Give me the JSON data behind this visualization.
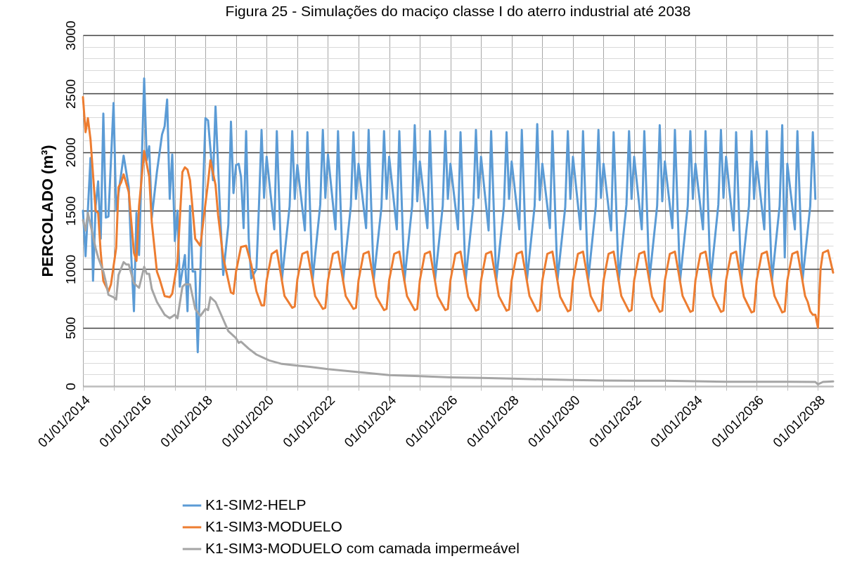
{
  "chart_data": {
    "type": "line",
    "title": "Figura 25 - Simulações do maciço classe I do aterro industrial até 2038",
    "ylabel": "PERCOLADO (m³)",
    "xlim": [
      "2014-01-01",
      "2038-07-01"
    ],
    "xticks": [
      {
        "value": "2014-01-01",
        "label": "01/01/2014"
      },
      {
        "value": "2015-01-01",
        "label": null
      },
      {
        "value": "2016-01-01",
        "label": "01/01/2016"
      },
      {
        "value": "2017-01-01",
        "label": null
      },
      {
        "value": "2018-01-01",
        "label": "01/01/2018"
      },
      {
        "value": "2019-01-01",
        "label": null
      },
      {
        "value": "2020-01-01",
        "label": "01/01/2020"
      },
      {
        "value": "2021-01-01",
        "label": null
      },
      {
        "value": "2022-01-01",
        "label": "01/01/2022"
      },
      {
        "value": "2023-01-01",
        "label": null
      },
      {
        "value": "2024-01-01",
        "label": "01/01/2024"
      },
      {
        "value": "2025-01-01",
        "label": null
      },
      {
        "value": "2026-01-01",
        "label": "01/01/2026"
      },
      {
        "value": "2027-01-01",
        "label": null
      },
      {
        "value": "2028-01-01",
        "label": "01/01/2028"
      },
      {
        "value": "2029-01-01",
        "label": null
      },
      {
        "value": "2030-01-01",
        "label": "01/01/2030"
      },
      {
        "value": "2031-01-01",
        "label": null
      },
      {
        "value": "2032-01-01",
        "label": "01/01/2032"
      },
      {
        "value": "2033-01-01",
        "label": null
      },
      {
        "value": "2034-01-01",
        "label": "01/01/2034"
      },
      {
        "value": "2035-01-01",
        "label": null
      },
      {
        "value": "2036-01-01",
        "label": "01/01/2036"
      },
      {
        "value": "2037-01-01",
        "label": null
      },
      {
        "value": "2038-01-01",
        "label": "01/01/2038"
      }
    ],
    "ylim": [
      0,
      3000
    ],
    "yticks": [
      0,
      {
        "value": 100,
        "label": null
      },
      {
        "value": 200,
        "label": null
      },
      {
        "value": 300,
        "label": null
      },
      {
        "value": 400,
        "label": null
      },
      500,
      {
        "value": 600,
        "label": null
      },
      {
        "value": 700,
        "label": null
      },
      {
        "value": 800,
        "label": null
      },
      {
        "value": 900,
        "label": null
      },
      1000,
      {
        "value": 1100,
        "label": null
      },
      {
        "value": 1200,
        "label": null
      },
      {
        "value": 1300,
        "label": null
      },
      {
        "value": 1400,
        "label": null
      },
      1500,
      {
        "value": 1600,
        "label": null
      },
      {
        "value": 1700,
        "label": null
      },
      {
        "value": 1800,
        "label": null
      },
      {
        "value": 1900,
        "label": null
      },
      2000,
      {
        "value": 2100,
        "label": null
      },
      {
        "value": 2200,
        "label": null
      },
      {
        "value": 2300,
        "label": null
      },
      {
        "value": 2400,
        "label": null
      },
      2500,
      {
        "value": 2600,
        "label": null
      },
      {
        "value": 2700,
        "label": null
      },
      {
        "value": 2800,
        "label": null
      },
      {
        "value": 2900,
        "label": null
      },
      3000
    ],
    "grid": true,
    "legend": "bottom",
    "marker": "none",
    "line_style": "solid",
    "series": [
      {
        "name": "K1-SIM2-HELP",
        "color": "#5b9bd5",
        "x": [
          "2014-01",
          "2014-02",
          "2014-04",
          "2014-05",
          "2014-06",
          "2014-07",
          "2014-08",
          "2014-09",
          "2014-10",
          "2014-11",
          "2015-01",
          "2015-02",
          "2015-05",
          "2015-07",
          "2015-08",
          "2015-09",
          "2015-10",
          "2015-11",
          "2016-01",
          "2016-02",
          "2016-03",
          "2016-04",
          "2016-06",
          "2016-08",
          "2016-09",
          "2016-10",
          "2016-11",
          "2016-12",
          "2017-01",
          "2017-02",
          "2017-03",
          "2017-05",
          "2017-06",
          "2017-07",
          "2017-08",
          "2017-09",
          "2017-10",
          "2017-12",
          "2018-01",
          "2018-02",
          "2018-04",
          "2018-05",
          "2018-07",
          "2018-08",
          "2018-10",
          "2018-11",
          "2018-12",
          "2019-01",
          "2019-02",
          "2019-03",
          "2019-04",
          "2019-05",
          "2019-06",
          "2019-07",
          "2019-09",
          "2019-10",
          "2019-11",
          "2019-12",
          "2020-01",
          "2020-04",
          "2020-05",
          "2020-07",
          "2020-10",
          "2020-11",
          "2020-12",
          "2021-01",
          "2021-04",
          "2021-05",
          "2021-07",
          "2021-10",
          "2021-11",
          "2021-12",
          "2022-01",
          "2022-04",
          "2022-05",
          "2022-07",
          "2022-10",
          "2022-11",
          "2022-12",
          "2023-01",
          "2023-04",
          "2023-05",
          "2023-07",
          "2023-10",
          "2023-11",
          "2023-12",
          "2024-01",
          "2024-04",
          "2024-05",
          "2024-07",
          "2024-10",
          "2024-11",
          "2024-12",
          "2025-01",
          "2025-04",
          "2025-05",
          "2025-07",
          "2025-10",
          "2025-11",
          "2025-12",
          "2026-01",
          "2026-04",
          "2026-05",
          "2026-07",
          "2026-10",
          "2026-11",
          "2026-12",
          "2027-01",
          "2027-04",
          "2027-05",
          "2027-07",
          "2027-10",
          "2027-11",
          "2027-12",
          "2028-01",
          "2028-04",
          "2028-05",
          "2028-07",
          "2028-10",
          "2028-11",
          "2028-12",
          "2029-01",
          "2029-04",
          "2029-05",
          "2029-07",
          "2029-10",
          "2029-11",
          "2029-12",
          "2030-01",
          "2030-04",
          "2030-05",
          "2030-07",
          "2030-10",
          "2030-11",
          "2030-12",
          "2031-01",
          "2031-04",
          "2031-05",
          "2031-07",
          "2031-10",
          "2031-11",
          "2031-12",
          "2032-01",
          "2032-04",
          "2032-05",
          "2032-07",
          "2032-10",
          "2032-11",
          "2032-12",
          "2033-01",
          "2033-04",
          "2033-05",
          "2033-07",
          "2033-10",
          "2033-11",
          "2033-12",
          "2034-01",
          "2034-04",
          "2034-05",
          "2034-07",
          "2034-10",
          "2034-11",
          "2034-12",
          "2035-01",
          "2035-04",
          "2035-05",
          "2035-07",
          "2035-10",
          "2035-11",
          "2035-12",
          "2036-01",
          "2036-04",
          "2036-05",
          "2036-07",
          "2036-10",
          "2036-11",
          "2036-12",
          "2037-01",
          "2037-04",
          "2037-05",
          "2037-07",
          "2037-10",
          "2037-11",
          "2037-12"
        ],
        "values": [
          1500,
          1110,
          1950,
          900,
          1540,
          1750,
          1260,
          2330,
          1440,
          1450,
          2420,
          1500,
          1970,
          1700,
          1100,
          640,
          1480,
          1120,
          2630,
          1930,
          2050,
          1440,
          1830,
          2150,
          2220,
          2450,
          1600,
          1980,
          1240,
          1500,
          850,
          1120,
          640,
          1540,
          980,
          980,
          290,
          1620,
          2290,
          2270,
          1760,
          2390,
          1380,
          950,
          1380,
          2260,
          1650,
          1890,
          1900,
          1790,
          1350,
          2180,
          1260,
          920,
          1000,
          1540,
          2190,
          1610,
          1960,
          1340,
          2180,
          910,
          1540,
          2180,
          1600,
          1890,
          1330,
          2170,
          900,
          1550,
          2190,
          1610,
          1980,
          1340,
          2180,
          905,
          1540,
          2170,
          1600,
          1900,
          1350,
          2190,
          910,
          1530,
          2180,
          1600,
          1960,
          1340,
          2180,
          900,
          1540,
          2230,
          1580,
          1920,
          1350,
          2180,
          905,
          1540,
          2180,
          1600,
          1900,
          1340,
          2170,
          910,
          1550,
          2190,
          1610,
          1960,
          1330,
          2180,
          900,
          1540,
          2170,
          1600,
          1920,
          1340,
          2190,
          905,
          1540,
          2240,
          1590,
          1900,
          1350,
          2180,
          910,
          1530,
          2180,
          1600,
          1960,
          1340,
          2180,
          900,
          1540,
          2190,
          1610,
          1900,
          1330,
          2170,
          905,
          1550,
          2180,
          1600,
          1960,
          1340,
          2180,
          910,
          1540,
          2230,
          1580,
          1920,
          1350,
          2190,
          900,
          1540,
          2180,
          1600,
          1900,
          1340,
          2180,
          905,
          1550,
          2190,
          1610,
          1960,
          1330,
          2170,
          910,
          1540,
          2180,
          1600,
          1920,
          1340,
          2180,
          900,
          1540,
          2230,
          1100,
          1900,
          1340,
          2180,
          905,
          1540,
          2170,
          1600
        ]
      },
      {
        "name": "K1-SIM3-MODUELO",
        "color": "#ed7d31",
        "x": [
          "2014-01",
          "2014-02",
          "2014-03",
          "2014-04",
          "2014-06",
          "2014-07",
          "2014-08",
          "2014-09",
          "2014-11",
          "2014-12",
          "2015-02",
          "2015-03",
          "2015-04",
          "2015-05",
          "2015-07",
          "2015-09",
          "2015-10",
          "2015-11",
          "2016-01",
          "2016-03",
          "2016-04",
          "2016-06",
          "2016-07",
          "2016-09",
          "2016-11",
          "2016-12",
          "2017-02",
          "2017-04",
          "2017-05",
          "2017-06",
          "2017-07",
          "2017-09",
          "2017-11",
          "2018-01",
          "2018-02",
          "2018-03",
          "2018-05",
          "2018-06",
          "2018-08",
          "2018-11",
          "2018-12",
          "2019-01",
          "2019-03",
          "2019-05",
          "2019-07",
          "2019-09",
          "2019-11",
          "2019-12",
          "2020-01",
          "2020-03",
          "2020-05",
          "2020-08",
          "2020-11",
          "2020-12",
          "2021-01",
          "2021-03",
          "2021-05",
          "2021-08",
          "2021-11",
          "2021-12",
          "2022-01",
          "2022-03",
          "2022-05",
          "2022-08",
          "2022-11",
          "2022-12",
          "2023-01",
          "2023-03",
          "2023-05",
          "2023-08",
          "2023-11",
          "2023-12",
          "2024-01",
          "2024-03",
          "2024-05",
          "2024-08",
          "2024-11",
          "2024-12",
          "2025-01",
          "2025-03",
          "2025-05",
          "2025-08",
          "2025-11",
          "2025-12",
          "2026-01",
          "2026-03",
          "2026-05",
          "2026-08",
          "2026-11",
          "2026-12",
          "2027-01",
          "2027-03",
          "2027-05",
          "2027-08",
          "2027-11",
          "2027-12",
          "2028-01",
          "2028-03",
          "2028-05",
          "2028-08",
          "2028-11",
          "2028-12",
          "2029-01",
          "2029-03",
          "2029-05",
          "2029-08",
          "2029-11",
          "2029-12",
          "2030-01",
          "2030-03",
          "2030-05",
          "2030-08",
          "2030-11",
          "2030-12",
          "2031-01",
          "2031-03",
          "2031-05",
          "2031-08",
          "2031-11",
          "2031-12",
          "2032-01",
          "2032-03",
          "2032-05",
          "2032-08",
          "2032-11",
          "2032-12",
          "2033-01",
          "2033-03",
          "2033-05",
          "2033-08",
          "2033-11",
          "2033-12",
          "2034-01",
          "2034-03",
          "2034-05",
          "2034-08",
          "2034-11",
          "2034-12",
          "2035-01",
          "2035-03",
          "2035-05",
          "2035-08",
          "2035-11",
          "2035-12",
          "2036-01",
          "2036-03",
          "2036-05",
          "2036-08",
          "2036-11",
          "2036-12",
          "2037-01",
          "2037-03",
          "2037-05",
          "2037-08",
          "2037-09",
          "2037-10",
          "2037-11",
          "2037-12",
          "2038-01",
          "2038-02",
          "2038-03",
          "2038-05",
          "2038-07"
        ],
        "values": [
          2470,
          2170,
          2290,
          2110,
          1500,
          1480,
          1140,
          900,
          810,
          870,
          1180,
          1700,
          1740,
          1810,
          1660,
          1140,
          1070,
          1540,
          2010,
          1790,
          1400,
          980,
          920,
          770,
          760,
          790,
          1060,
          1830,
          1870,
          1850,
          1760,
          1260,
          1200,
          1560,
          1740,
          1930,
          1720,
          1460,
          1100,
          800,
          790,
          980,
          1190,
          1200,
          1040,
          810,
          690,
          690,
          905,
          1130,
          1160,
          770,
          670,
          680,
          910,
          1130,
          1150,
          770,
          660,
          670,
          905,
          1130,
          1150,
          770,
          660,
          670,
          905,
          1130,
          1150,
          765,
          650,
          660,
          905,
          1130,
          1150,
          770,
          650,
          660,
          905,
          1130,
          1150,
          770,
          650,
          660,
          905,
          1130,
          1150,
          765,
          645,
          655,
          905,
          1130,
          1150,
          770,
          645,
          655,
          905,
          1130,
          1150,
          770,
          640,
          650,
          905,
          1130,
          1150,
          765,
          640,
          650,
          905,
          1130,
          1150,
          770,
          640,
          650,
          905,
          1130,
          1150,
          770,
          640,
          650,
          905,
          1130,
          1150,
          765,
          635,
          645,
          905,
          1130,
          1150,
          770,
          635,
          645,
          905,
          1130,
          1150,
          770,
          635,
          645,
          905,
          1130,
          1150,
          765,
          630,
          640,
          905,
          1130,
          1150,
          770,
          630,
          640,
          905,
          1130,
          1150,
          770,
          720,
          640,
          610,
          610,
          500,
          1000,
          1140,
          1160,
          970
        ]
      },
      {
        "name": "K1-SIM3-MODUELO com camada impermeável",
        "color": "#a5a5a5",
        "x": [
          "2014-01",
          "2014-02",
          "2014-03",
          "2014-04",
          "2014-06",
          "2014-07",
          "2014-09",
          "2014-10",
          "2014-11",
          "2015-01",
          "2015-02",
          "2015-03",
          "2015-05",
          "2015-06",
          "2015-07",
          "2015-09",
          "2015-11",
          "2016-01",
          "2016-02",
          "2016-03",
          "2016-04",
          "2016-06",
          "2016-09",
          "2016-11",
          "2017-01",
          "2017-02",
          "2017-04",
          "2017-05",
          "2017-07",
          "2017-09",
          "2017-11",
          "2018-01",
          "2018-02",
          "2018-03",
          "2018-05",
          "2018-08",
          "2018-10",
          "2019-01",
          "2019-02",
          "2019-03",
          "2019-06",
          "2019-09",
          "2020-02",
          "2020-07",
          "2021-01",
          "2021-06",
          "2022-01",
          "2023-01",
          "2024-01",
          "2025-01",
          "2026-01",
          "2027-01",
          "2028-01",
          "2029-01",
          "2030-01",
          "2031-01",
          "2032-01",
          "2033-01",
          "2034-01",
          "2035-01",
          "2036-01",
          "2037-01",
          "2037-12",
          "2038-01",
          "2038-03",
          "2038-07"
        ],
        "values": [
          1420,
          1330,
          1480,
          1380,
          1180,
          1100,
          980,
          890,
          780,
          760,
          740,
          950,
          1060,
          1040,
          1040,
          880,
          840,
          1020,
          960,
          960,
          830,
          720,
          610,
          580,
          610,
          580,
          850,
          870,
          870,
          660,
          600,
          660,
          650,
          760,
          720,
          570,
          470,
          410,
          370,
          380,
          320,
          270,
          220,
          190,
          175,
          165,
          145,
          120,
          95,
          85,
          75,
          70,
          65,
          58,
          52,
          48,
          46,
          46,
          42,
          38,
          38,
          38,
          36,
          16,
          36,
          40
        ]
      }
    ]
  }
}
